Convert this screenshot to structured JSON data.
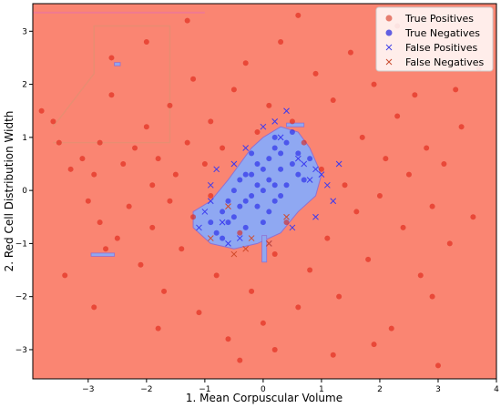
{
  "chart_data": {
    "type": "scatter",
    "title": "",
    "xlabel": "1. Mean Corpuscular Volume",
    "ylabel": "2. Red Cell Distribution Width",
    "xlim": [
      -3.95,
      4.0
    ],
    "ylim": [
      -3.55,
      3.52
    ],
    "xticks": [
      -3,
      -2,
      -1,
      0,
      1,
      2,
      3,
      4
    ],
    "yticks": [
      -3,
      -2,
      -1,
      0,
      1,
      2,
      3
    ],
    "grid": false,
    "legend_position": "top-right",
    "background_region_color": "#fa8572",
    "region_blue_color": "#8fa8f2",
    "colors": {
      "true_positives": "#dd1f12",
      "true_negatives": "#1f20e8",
      "false_positives": "#3a3af0",
      "false_negatives": "#d04a2a"
    },
    "legend": [
      {
        "name": "True Positives",
        "marker": "circle",
        "color": "#e06050"
      },
      {
        "name": "True Negatives",
        "marker": "circle",
        "color": "#3b3be0"
      },
      {
        "name": "False Positives",
        "marker": "x",
        "color": "#4040e8"
      },
      {
        "name": "False Negatives",
        "marker": "x",
        "color": "#c84c30"
      }
    ],
    "series": [
      {
        "name": "True Positives",
        "marker": "circle",
        "points": [
          [
            -3.8,
            1.5
          ],
          [
            -3.6,
            1.3
          ],
          [
            -3.5,
            0.9
          ],
          [
            -3.3,
            0.4
          ],
          [
            -3.1,
            0.6
          ],
          [
            -3.0,
            -0.2
          ],
          [
            -2.9,
            0.3
          ],
          [
            -2.8,
            -0.6
          ],
          [
            -2.8,
            0.9
          ],
          [
            -2.7,
            -1.1
          ],
          [
            -2.6,
            2.5
          ],
          [
            -2.5,
            -0.9
          ],
          [
            -2.4,
            0.5
          ],
          [
            -2.3,
            -0.3
          ],
          [
            -2.2,
            0.8
          ],
          [
            -2.1,
            -1.4
          ],
          [
            -2.0,
            1.2
          ],
          [
            -1.9,
            0.1
          ],
          [
            -1.9,
            -0.7
          ],
          [
            -1.8,
            0.6
          ],
          [
            -1.7,
            -1.9
          ],
          [
            -1.6,
            1.6
          ],
          [
            -1.6,
            -0.2
          ],
          [
            -1.5,
            0.3
          ],
          [
            -1.4,
            -1.1
          ],
          [
            -1.3,
            0.9
          ],
          [
            -1.2,
            -0.5
          ],
          [
            -1.2,
            2.1
          ],
          [
            -1.1,
            -2.3
          ],
          [
            -1.0,
            0.5
          ],
          [
            -0.9,
            -0.1
          ],
          [
            -0.9,
            1.3
          ],
          [
            -0.8,
            -1.6
          ],
          [
            -0.7,
            0.8
          ],
          [
            -0.6,
            -2.8
          ],
          [
            -0.5,
            1.9
          ],
          [
            -0.4,
            -0.8
          ],
          [
            -0.3,
            2.4
          ],
          [
            -0.2,
            -1.9
          ],
          [
            -0.1,
            1.1
          ],
          [
            0.0,
            -2.5
          ],
          [
            0.1,
            1.6
          ],
          [
            0.2,
            -1.2
          ],
          [
            0.3,
            2.8
          ],
          [
            0.4,
            -0.6
          ],
          [
            0.5,
            1.3
          ],
          [
            0.6,
            -2.2
          ],
          [
            0.7,
            0.9
          ],
          [
            0.8,
            -1.5
          ],
          [
            0.9,
            2.2
          ],
          [
            1.0,
            0.4
          ],
          [
            1.1,
            -0.9
          ],
          [
            1.2,
            1.7
          ],
          [
            1.3,
            -2.0
          ],
          [
            1.4,
            0.1
          ],
          [
            1.5,
            2.6
          ],
          [
            1.6,
            -0.4
          ],
          [
            1.7,
            1.0
          ],
          [
            1.8,
            -1.3
          ],
          [
            1.9,
            2.0
          ],
          [
            2.0,
            -0.1
          ],
          [
            2.1,
            0.6
          ],
          [
            2.2,
            -2.6
          ],
          [
            2.3,
            1.4
          ],
          [
            2.4,
            -0.7
          ],
          [
            2.5,
            0.3
          ],
          [
            2.6,
            1.8
          ],
          [
            2.7,
            -1.6
          ],
          [
            2.8,
            0.8
          ],
          [
            2.9,
            -0.3
          ],
          [
            3.0,
            -3.3
          ],
          [
            3.1,
            0.5
          ],
          [
            3.2,
            -1.0
          ],
          [
            3.4,
            1.2
          ],
          [
            3.6,
            -0.5
          ],
          [
            3.7,
            2.3
          ],
          [
            -2.0,
            2.8
          ],
          [
            -1.3,
            3.2
          ],
          [
            0.6,
            3.3
          ],
          [
            2.3,
            3.1
          ],
          [
            -3.4,
            -1.6
          ],
          [
            -2.9,
            -2.2
          ],
          [
            -1.8,
            -2.6
          ],
          [
            1.2,
            -3.1
          ],
          [
            1.9,
            -2.9
          ],
          [
            -0.4,
            -3.2
          ],
          [
            0.2,
            -3.0
          ],
          [
            3.3,
            1.9
          ],
          [
            -2.6,
            1.8
          ],
          [
            2.9,
            -2.0
          ]
        ]
      },
      {
        "name": "True Negatives",
        "marker": "circle",
        "points": [
          [
            -0.1,
            0.1
          ],
          [
            0.0,
            0.0
          ],
          [
            0.1,
            0.2
          ],
          [
            -0.2,
            -0.1
          ],
          [
            0.2,
            -0.2
          ],
          [
            -0.3,
            0.3
          ],
          [
            0.3,
            0.4
          ],
          [
            -0.4,
            -0.3
          ],
          [
            0.4,
            0.1
          ],
          [
            -0.5,
            -0.5
          ],
          [
            0.5,
            0.5
          ],
          [
            -0.6,
            -0.6
          ],
          [
            0.6,
            0.7
          ],
          [
            -0.7,
            -0.4
          ],
          [
            0.7,
            0.2
          ],
          [
            -0.8,
            -0.8
          ],
          [
            0.8,
            0.6
          ],
          [
            -0.1,
            0.5
          ],
          [
            0.1,
            -0.4
          ],
          [
            -0.2,
            0.7
          ],
          [
            0.2,
            0.8
          ],
          [
            -0.3,
            -0.7
          ],
          [
            0.3,
            -0.1
          ],
          [
            -0.4,
            0.2
          ],
          [
            0.4,
            0.9
          ],
          [
            -0.5,
            0.0
          ],
          [
            0.0,
            0.4
          ],
          [
            -0.1,
            -0.3
          ],
          [
            0.1,
            0.6
          ],
          [
            -0.2,
            0.3
          ],
          [
            0.2,
            0.1
          ],
          [
            -0.3,
            -0.2
          ],
          [
            0.3,
            0.7
          ],
          [
            -0.6,
            -0.2
          ],
          [
            0.6,
            0.3
          ],
          [
            -0.9,
            -0.6
          ],
          [
            0.0,
            -0.6
          ],
          [
            0.5,
            1.1
          ],
          [
            -0.7,
            -0.9
          ],
          [
            0.2,
            1.0
          ]
        ]
      },
      {
        "name": "False Positives",
        "marker": "x",
        "points": [
          [
            -1.0,
            -0.4
          ],
          [
            -0.9,
            -0.2
          ],
          [
            -0.8,
            0.4
          ],
          [
            -0.7,
            -0.6
          ],
          [
            -0.6,
            -1.0
          ],
          [
            -0.5,
            0.5
          ],
          [
            -0.4,
            -0.9
          ],
          [
            -0.3,
            0.8
          ],
          [
            0.0,
            1.2
          ],
          [
            0.2,
            1.3
          ],
          [
            0.4,
            1.5
          ],
          [
            0.6,
            0.6
          ],
          [
            0.7,
            0.5
          ],
          [
            0.8,
            0.2
          ],
          [
            0.9,
            0.4
          ],
          [
            1.0,
            0.3
          ],
          [
            1.1,
            0.1
          ],
          [
            1.2,
            -0.2
          ],
          [
            0.9,
            -0.5
          ],
          [
            0.5,
            -0.7
          ],
          [
            -1.1,
            -0.7
          ],
          [
            -0.9,
            0.1
          ],
          [
            0.3,
            1.0
          ],
          [
            0.1,
            -1.0
          ],
          [
            1.3,
            0.5
          ]
        ]
      },
      {
        "name": "False Negatives",
        "marker": "x",
        "points": [
          [
            -0.9,
            -0.9
          ],
          [
            -0.5,
            -1.2
          ],
          [
            -0.2,
            -0.9
          ],
          [
            0.1,
            -1.0
          ],
          [
            -0.6,
            -0.3
          ],
          [
            0.4,
            -0.5
          ],
          [
            -0.3,
            -1.1
          ]
        ]
      }
    ]
  }
}
